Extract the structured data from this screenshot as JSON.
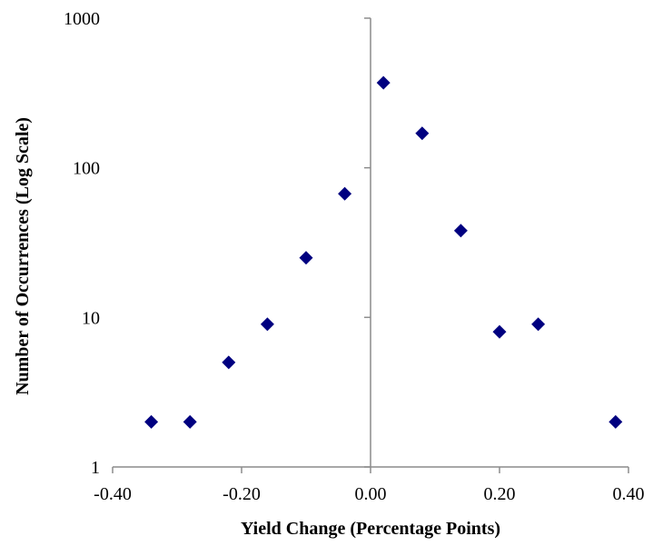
{
  "chart_data": {
    "type": "scatter",
    "title": "",
    "xlabel": "Yield Change (Percentage Points)",
    "ylabel": "Number of Occurrences (Log Scale)",
    "xlim": [
      -0.4,
      0.4
    ],
    "ylim": [
      1,
      1000
    ],
    "yscale": "log",
    "grid": false,
    "legend": "none",
    "x_ticks": [
      "-0.40",
      "-0.20",
      "0.00",
      "0.20",
      "0.40"
    ],
    "y_ticks": [
      "1",
      "10",
      "100",
      "1000"
    ],
    "marker_color": "#000080",
    "axis_color": "#8c8c8c",
    "series": [
      {
        "marker": "diamond",
        "points": [
          {
            "x": -0.34,
            "y": 2
          },
          {
            "x": -0.28,
            "y": 2
          },
          {
            "x": -0.22,
            "y": 5
          },
          {
            "x": -0.16,
            "y": 9
          },
          {
            "x": -0.1,
            "y": 25
          },
          {
            "x": -0.04,
            "y": 67
          },
          {
            "x": 0.02,
            "y": 370
          },
          {
            "x": 0.08,
            "y": 170
          },
          {
            "x": 0.14,
            "y": 38
          },
          {
            "x": 0.2,
            "y": 8
          },
          {
            "x": 0.26,
            "y": 9
          },
          {
            "x": 0.38,
            "y": 2
          }
        ]
      }
    ]
  }
}
